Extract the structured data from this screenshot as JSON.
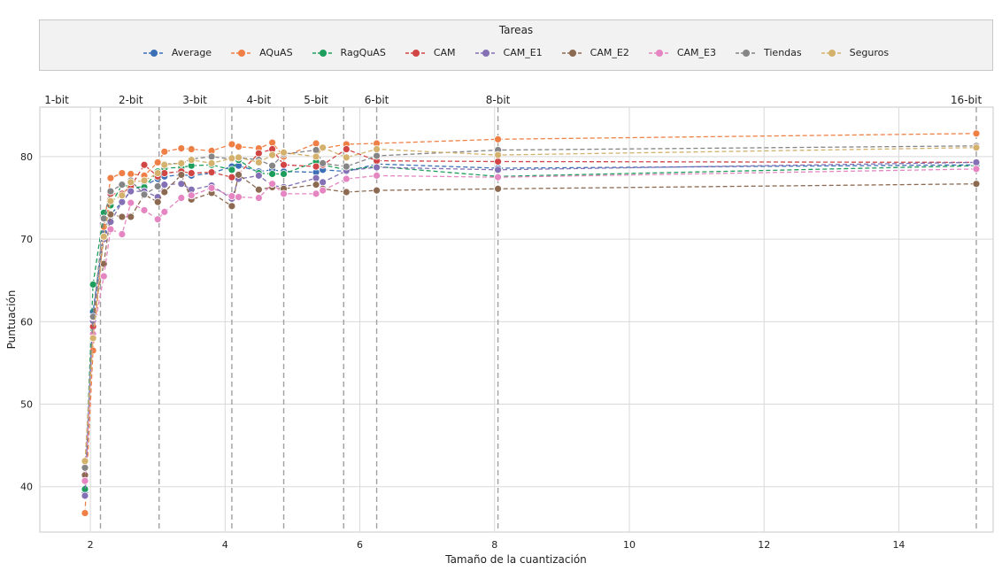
{
  "chart_data": {
    "type": "line",
    "legend_title": "Tareas",
    "legend_position": "top",
    "xlabel": "Tamaño de la cuantización",
    "ylabel": "Puntuación",
    "xlim": [
      1.25,
      15.4
    ],
    "ylim": [
      34.5,
      86
    ],
    "xticks": [
      2,
      4,
      6,
      8,
      10,
      12,
      14
    ],
    "yticks": [
      40,
      50,
      60,
      70,
      80
    ],
    "grid": true,
    "bit_markers": [
      {
        "label": "1-bit",
        "label_x": 1.5,
        "line_x": null
      },
      {
        "label": "2-bit",
        "label_x": 2.6,
        "line_x": 2.15
      },
      {
        "label": "3-bit",
        "label_x": 3.55,
        "line_x": 3.02
      },
      {
        "label": "4-bit",
        "label_x": 4.5,
        "line_x": 4.1
      },
      {
        "label": "5-bit",
        "label_x": 5.35,
        "line_x": 4.87
      },
      {
        "label": "6-bit",
        "label_x": 6.25,
        "line_x": 5.76
      },
      {
        "label": "",
        "label_x": null,
        "line_x": 6.25
      },
      {
        "label": "8-bit",
        "label_x": 8.05,
        "line_x": 8.05
      },
      {
        "label": "16-bit",
        "label_x": 15.0,
        "line_x": 15.15
      }
    ],
    "x": [
      1.92,
      2.04,
      2.2,
      2.3,
      2.47,
      2.6,
      2.8,
      3.0,
      3.1,
      3.35,
      3.5,
      3.8,
      4.1,
      4.2,
      4.5,
      4.7,
      4.87,
      5.35,
      5.45,
      5.8,
      6.25,
      8.05,
      15.15
    ],
    "series": [
      {
        "name": "Average",
        "color": "#3b6fb6",
        "values": [
          39.2,
          61.2,
          70.8,
          73.0,
          74.5,
          75.9,
          76.5,
          77.3,
          77.6,
          77.8,
          77.7,
          78.0,
          78.8,
          78.9,
          78.2,
          78.4,
          78.2,
          78.1,
          78.4,
          78.2,
          79.1,
          78.6,
          79.0
        ]
      },
      {
        "name": "AQuAS",
        "color": "#ef7f45",
        "values": [
          36.8,
          56.5,
          71.5,
          77.4,
          78.0,
          77.9,
          77.7,
          79.3,
          80.6,
          81.0,
          80.9,
          80.7,
          81.5,
          81.2,
          81.0,
          81.7,
          80.0,
          81.6,
          81.0,
          81.5,
          81.6,
          82.1,
          82.8
        ]
      },
      {
        "name": "RagQuAS",
        "color": "#1e9e5c",
        "values": [
          39.7,
          64.5,
          73.2,
          74.1,
          76.6,
          76.3,
          76.3,
          78.2,
          78.6,
          78.7,
          78.9,
          79.0,
          78.4,
          79.6,
          78.0,
          77.9,
          77.9,
          79.4,
          79.0,
          78.4,
          78.8,
          77.6,
          78.9
        ]
      },
      {
        "name": "CAM",
        "color": "#d24545",
        "values": [
          41.4,
          59.4,
          70.2,
          75.5,
          75.5,
          76.4,
          79.0,
          77.6,
          78.0,
          78.2,
          78.0,
          78.1,
          77.5,
          77.9,
          80.4,
          80.9,
          79.0,
          78.8,
          79.0,
          80.9,
          79.5,
          79.4,
          79.3
        ]
      },
      {
        "name": "CAM_E1",
        "color": "#8370b5",
        "values": [
          38.9,
          60.1,
          70.0,
          72.1,
          74.5,
          75.8,
          75.8,
          75.1,
          76.6,
          76.7,
          76.0,
          76.5,
          74.9,
          77.3,
          77.7,
          76.5,
          76.3,
          77.4,
          76.9,
          78.3,
          78.7,
          78.4,
          79.3
        ]
      },
      {
        "name": "CAM_E2",
        "color": "#8c6a52",
        "values": [
          41.4,
          60.5,
          67.0,
          73.0,
          72.7,
          72.7,
          75.4,
          74.5,
          75.7,
          77.8,
          74.8,
          75.6,
          74.0,
          77.8,
          76.0,
          76.3,
          76.1,
          76.6,
          76.1,
          75.7,
          75.9,
          76.1,
          76.7
        ]
      },
      {
        "name": "CAM_E3",
        "color": "#e586c2",
        "values": [
          40.7,
          58.5,
          65.5,
          71.2,
          70.6,
          74.4,
          73.5,
          72.4,
          73.3,
          75.0,
          75.3,
          76.2,
          75.2,
          75.1,
          75.0,
          76.7,
          75.5,
          75.5,
          75.9,
          77.3,
          77.7,
          77.5,
          78.5
        ]
      },
      {
        "name": "Tiendas",
        "color": "#858585",
        "values": [
          42.3,
          60.6,
          72.5,
          75.8,
          76.6,
          77.1,
          75.4,
          76.4,
          79.1,
          79.2,
          79.7,
          80.0,
          79.7,
          79.9,
          79.6,
          78.9,
          80.3,
          80.8,
          79.2,
          78.8,
          80.1,
          80.8,
          81.3
        ]
      },
      {
        "name": "Seguros",
        "color": "#d4b26e",
        "values": [
          43.1,
          58.0,
          70.3,
          74.6,
          75.3,
          76.9,
          77.1,
          78.0,
          79.0,
          79.2,
          79.6,
          79.2,
          79.8,
          79.9,
          79.3,
          80.2,
          80.5,
          80.0,
          81.1,
          79.9,
          80.9,
          80.2,
          81.1
        ]
      }
    ]
  }
}
